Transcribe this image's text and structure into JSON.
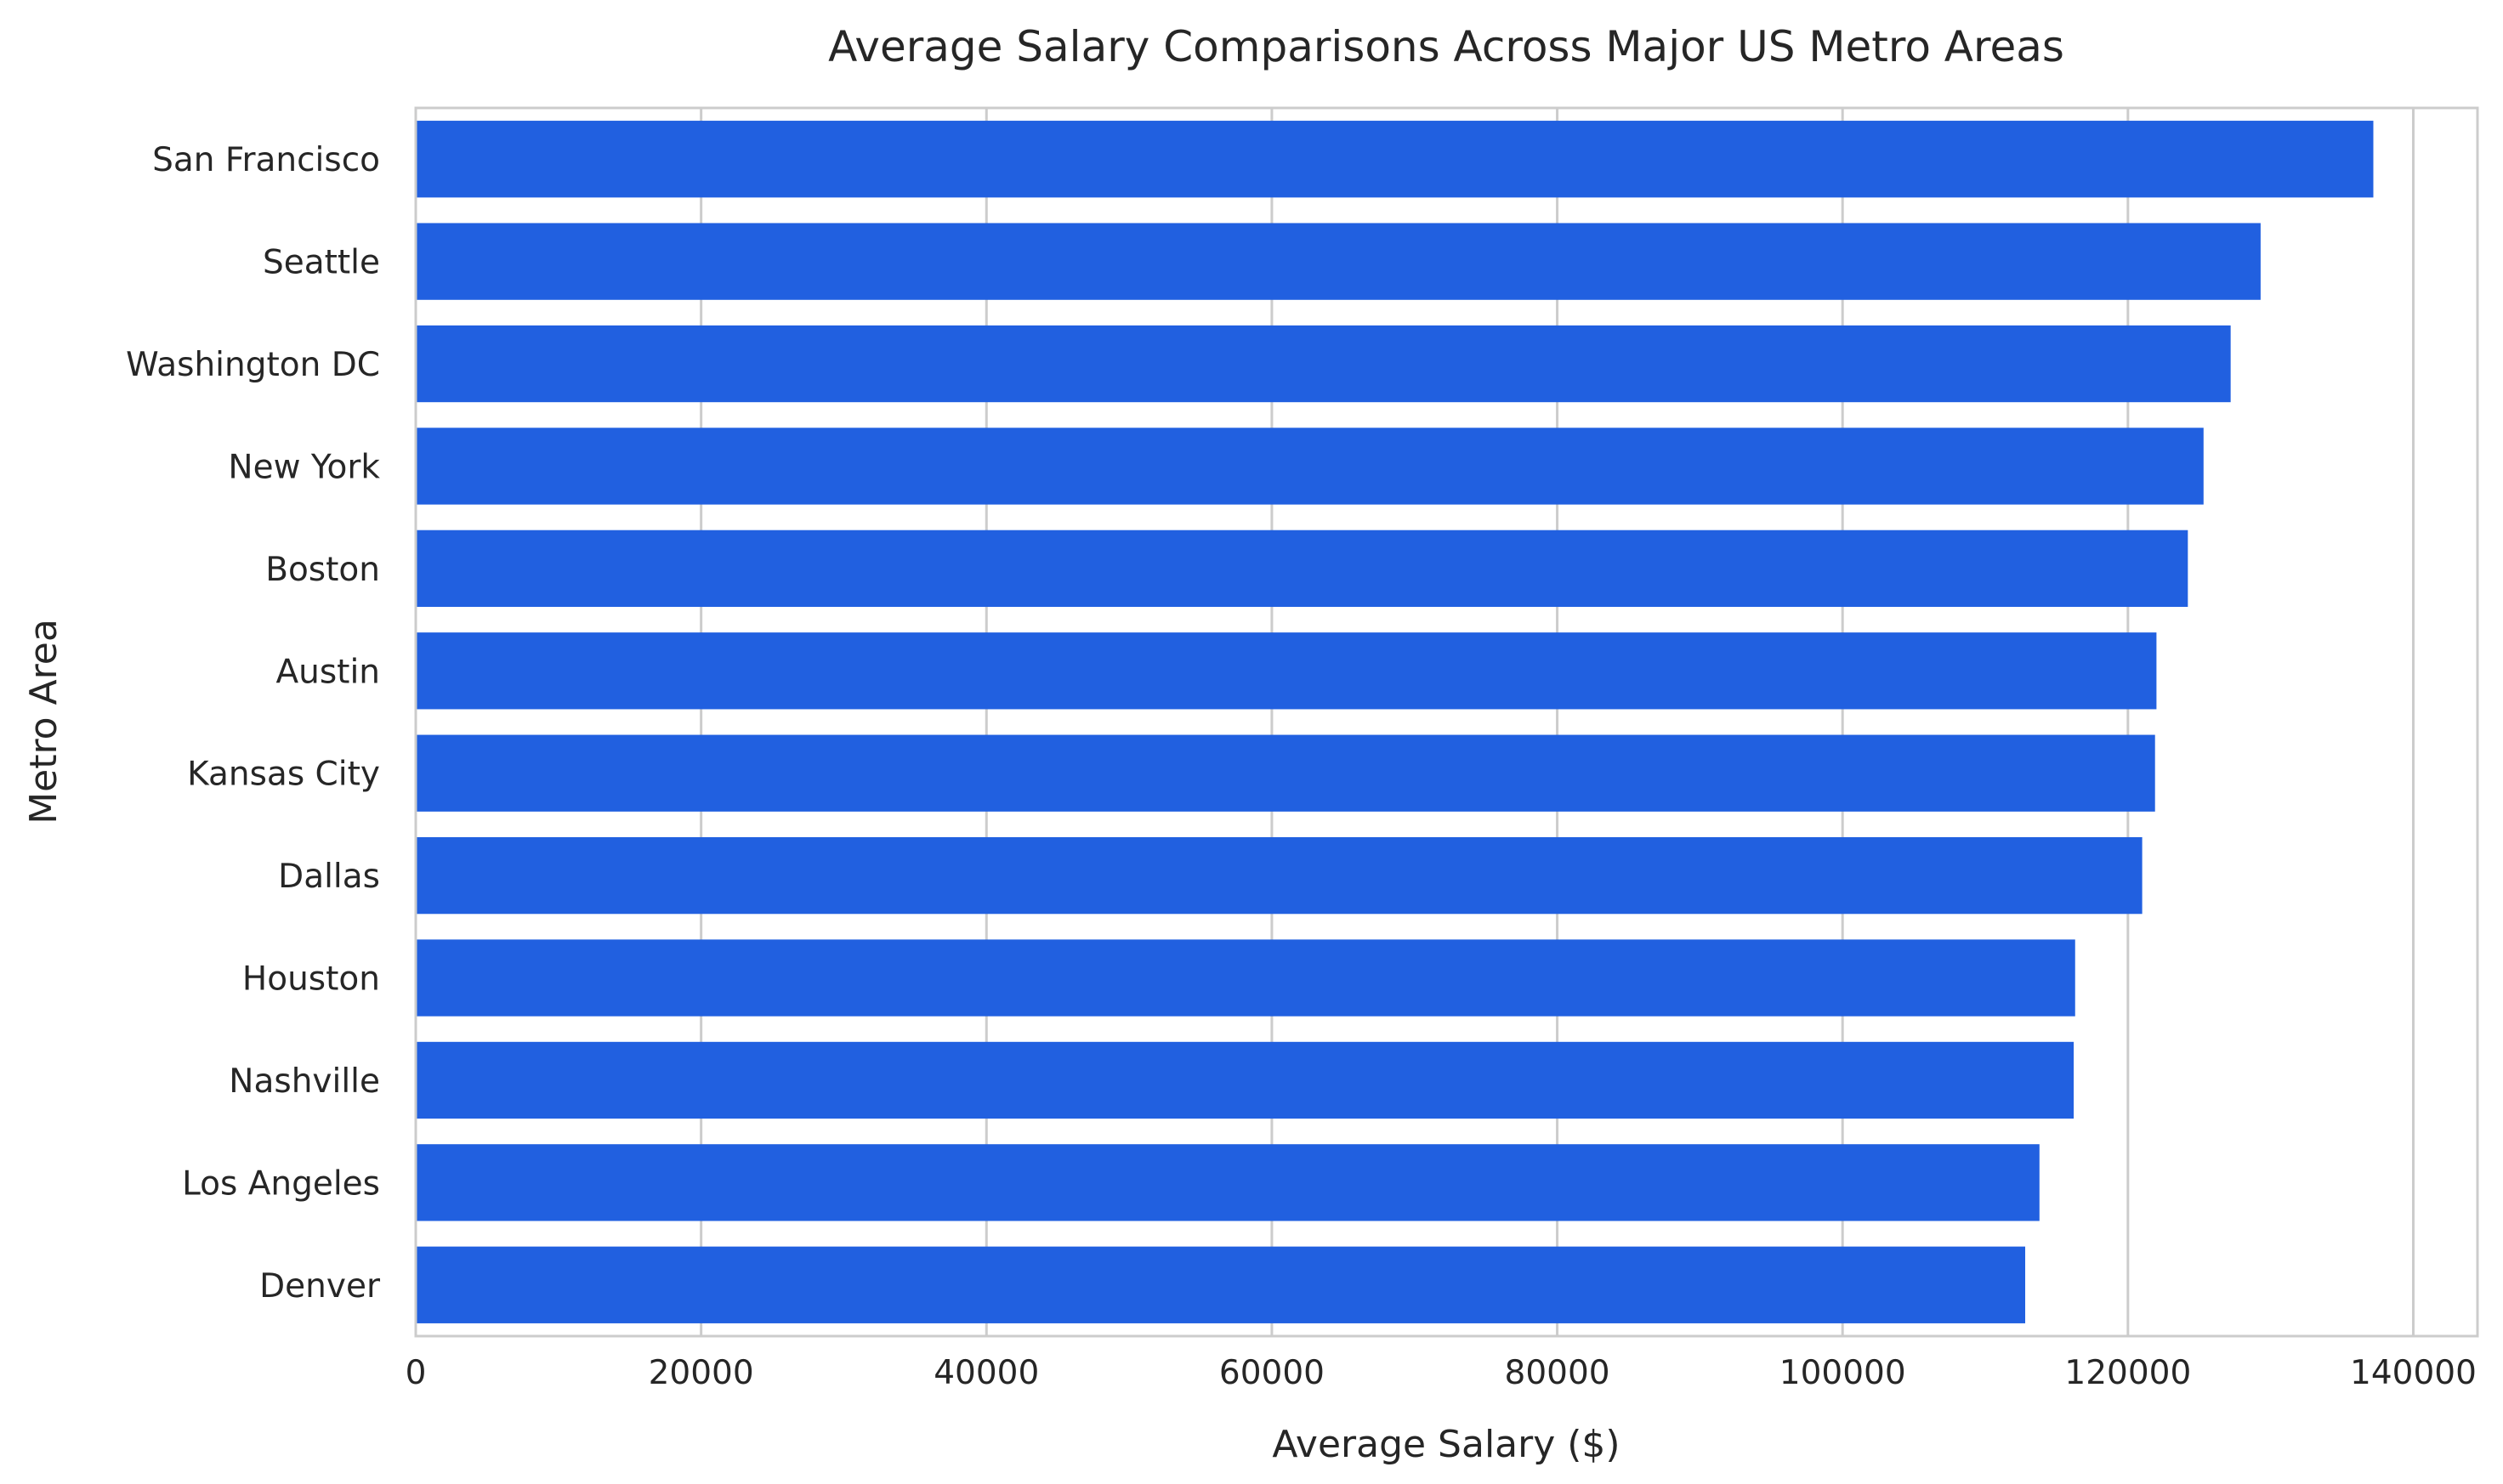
{
  "chart_data": {
    "type": "bar",
    "orientation": "horizontal",
    "title": "Average Salary Comparisons Across Major US Metro Areas",
    "xlabel": "Average Salary ($)",
    "ylabel": "Metro Area",
    "categories": [
      "San Francisco",
      "Seattle",
      "Washington DC",
      "New York",
      "Boston",
      "Austin",
      "Kansas City",
      "Dallas",
      "Houston",
      "Nashville",
      "Los Angeles",
      "Denver"
    ],
    "values": [
      137200,
      129300,
      127200,
      125300,
      124200,
      122000,
      121900,
      121000,
      116300,
      116200,
      113800,
      112800
    ],
    "xlim": [
      0,
      144500
    ],
    "xticks": [
      0,
      20000,
      40000,
      60000,
      80000,
      100000,
      120000,
      140000
    ],
    "grid": true,
    "bar_color": "#2160e0"
  }
}
